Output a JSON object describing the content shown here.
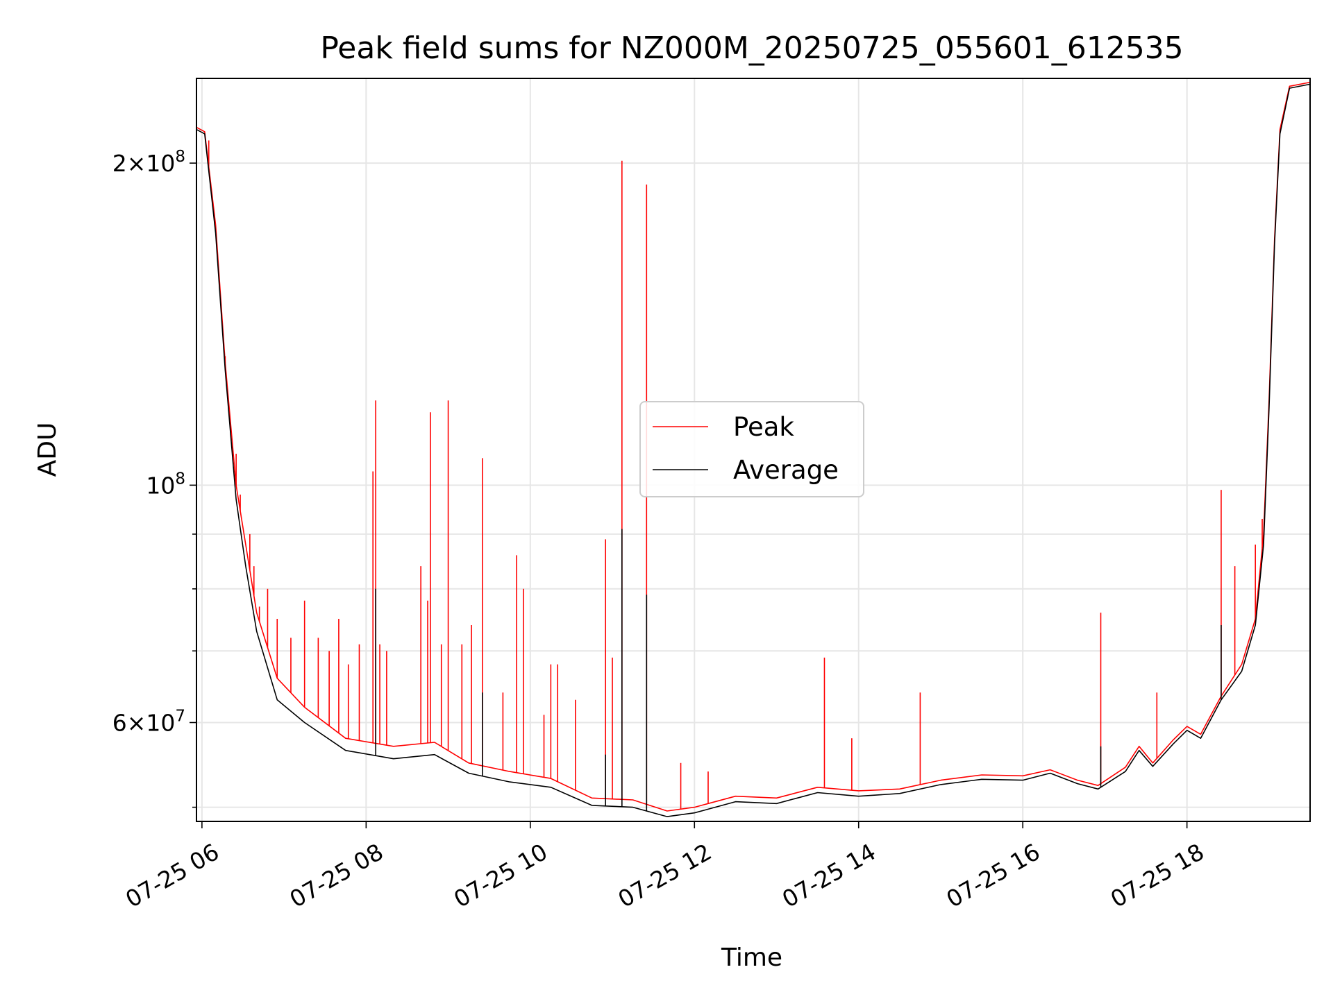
{
  "chart_data": {
    "type": "line",
    "title": "Peak field sums for NZ000M_20250725_055601_612535",
    "xlabel": "Time",
    "ylabel": "ADU",
    "x_range": [
      "2025-07-25 05:56",
      "2025-07-25 19:30"
    ],
    "y_range": [
      48500000,
      240000000
    ],
    "y_scale": "log",
    "grid": true,
    "legend_position": "center",
    "x_ticks": [
      {
        "value": "2025-07-25 06:00",
        "label": "07-25 06"
      },
      {
        "value": "2025-07-25 08:00",
        "label": "07-25 08"
      },
      {
        "value": "2025-07-25 10:00",
        "label": "07-25 10"
      },
      {
        "value": "2025-07-25 12:00",
        "label": "07-25 12"
      },
      {
        "value": "2025-07-25 14:00",
        "label": "07-25 14"
      },
      {
        "value": "2025-07-25 16:00",
        "label": "07-25 16"
      },
      {
        "value": "2025-07-25 18:00",
        "label": "07-25 18"
      }
    ],
    "y_ticks_major": [
      {
        "value": 60000000,
        "mantissa": "6",
        "exponent": "7"
      },
      {
        "value": 100000000,
        "mantissa": "",
        "exponent": "8"
      },
      {
        "value": 200000000,
        "mantissa": "2",
        "exponent": "8"
      }
    ],
    "y_ticks_minor": [
      50000000,
      70000000,
      80000000,
      90000000
    ],
    "series": [
      {
        "name": "Peak",
        "color": "#ff0000",
        "points": [
          [
            "2025-07-25 05:56",
            216000000
          ],
          [
            "2025-07-25 06:02",
            214000000
          ],
          [
            "2025-07-25 06:10",
            175000000
          ],
          [
            "2025-07-25 06:17",
            130000000
          ],
          [
            "2025-07-25 06:25",
            100000000
          ],
          [
            "2025-07-25 06:32",
            88000000
          ],
          [
            "2025-07-25 06:40",
            76000000
          ],
          [
            "2025-07-25 06:55",
            66000000
          ],
          [
            "2025-07-25 07:15",
            62000000
          ],
          [
            "2025-07-25 07:45",
            58000000
          ],
          [
            "2025-07-25 08:20",
            57000000
          ],
          [
            "2025-07-25 08:50",
            57500000
          ],
          [
            "2025-07-25 09:15",
            55000000
          ],
          [
            "2025-07-25 09:45",
            54000000
          ],
          [
            "2025-07-25 10:15",
            53200000
          ],
          [
            "2025-07-25 10:45",
            51000000
          ],
          [
            "2025-07-25 11:15",
            50800000
          ],
          [
            "2025-07-25 11:40",
            49600000
          ],
          [
            "2025-07-25 12:00",
            50000000
          ],
          [
            "2025-07-25 12:30",
            51200000
          ],
          [
            "2025-07-25 13:00",
            51000000
          ],
          [
            "2025-07-25 13:30",
            52200000
          ],
          [
            "2025-07-25 14:00",
            51800000
          ],
          [
            "2025-07-25 14:30",
            52000000
          ],
          [
            "2025-07-25 15:00",
            53000000
          ],
          [
            "2025-07-25 15:30",
            53600000
          ],
          [
            "2025-07-25 16:00",
            53500000
          ],
          [
            "2025-07-25 16:20",
            54200000
          ],
          [
            "2025-07-25 16:40",
            53000000
          ],
          [
            "2025-07-25 16:55",
            52400000
          ],
          [
            "2025-07-25 17:15",
            54500000
          ],
          [
            "2025-07-25 17:25",
            57000000
          ],
          [
            "2025-07-25 17:35",
            55000000
          ],
          [
            "2025-07-25 17:50",
            57800000
          ],
          [
            "2025-07-25 18:00",
            59500000
          ],
          [
            "2025-07-25 18:10",
            58500000
          ],
          [
            "2025-07-25 18:25",
            63500000
          ],
          [
            "2025-07-25 18:40",
            68000000
          ],
          [
            "2025-07-25 18:50",
            75000000
          ],
          [
            "2025-07-25 18:56",
            90000000
          ],
          [
            "2025-07-25 19:00",
            120000000
          ],
          [
            "2025-07-25 19:04",
            170000000
          ],
          [
            "2025-07-25 19:08",
            215000000
          ],
          [
            "2025-07-25 19:15",
            236000000
          ],
          [
            "2025-07-25 19:30",
            238000000
          ]
        ],
        "spikes": [
          [
            "2025-07-25 06:05",
            210000000
          ],
          [
            "2025-07-25 06:17",
            132000000
          ],
          [
            "2025-07-25 06:25",
            107000000
          ],
          [
            "2025-07-25 06:28",
            98000000
          ],
          [
            "2025-07-25 06:35",
            90000000
          ],
          [
            "2025-07-25 06:38",
            84000000
          ],
          [
            "2025-07-25 06:42",
            77000000
          ],
          [
            "2025-07-25 06:48",
            80000000
          ],
          [
            "2025-07-25 06:55",
            75000000
          ],
          [
            "2025-07-25 07:05",
            72000000
          ],
          [
            "2025-07-25 07:15",
            78000000
          ],
          [
            "2025-07-25 07:25",
            72000000
          ],
          [
            "2025-07-25 07:33",
            70000000
          ],
          [
            "2025-07-25 07:40",
            75000000
          ],
          [
            "2025-07-25 07:47",
            68000000
          ],
          [
            "2025-07-25 07:55",
            71000000
          ],
          [
            "2025-07-25 08:05",
            103000000
          ],
          [
            "2025-07-25 08:07",
            120000000
          ],
          [
            "2025-07-25 08:10",
            71000000
          ],
          [
            "2025-07-25 08:15",
            70000000
          ],
          [
            "2025-07-25 08:40",
            84000000
          ],
          [
            "2025-07-25 08:45",
            78000000
          ],
          [
            "2025-07-25 08:47",
            117000000
          ],
          [
            "2025-07-25 08:55",
            71000000
          ],
          [
            "2025-07-25 09:00",
            120000000
          ],
          [
            "2025-07-25 09:10",
            71000000
          ],
          [
            "2025-07-25 09:17",
            74000000
          ],
          [
            "2025-07-25 09:25",
            106000000
          ],
          [
            "2025-07-25 09:40",
            64000000
          ],
          [
            "2025-07-25 09:50",
            86000000
          ],
          [
            "2025-07-25 09:55",
            80000000
          ],
          [
            "2025-07-25 10:10",
            61000000
          ],
          [
            "2025-07-25 10:15",
            68000000
          ],
          [
            "2025-07-25 10:20",
            68000000
          ],
          [
            "2025-07-25 10:33",
            63000000
          ],
          [
            "2025-07-25 10:55",
            89000000
          ],
          [
            "2025-07-25 11:00",
            69000000
          ],
          [
            "2025-07-25 11:07",
            201000000
          ],
          [
            "2025-07-25 11:25",
            191000000
          ],
          [
            "2025-07-25 11:50",
            55000000
          ],
          [
            "2025-07-25 12:10",
            54000000
          ],
          [
            "2025-07-25 13:35",
            69000000
          ],
          [
            "2025-07-25 13:55",
            58000000
          ],
          [
            "2025-07-25 14:45",
            64000000
          ],
          [
            "2025-07-25 16:57",
            76000000
          ],
          [
            "2025-07-25 17:38",
            64000000
          ],
          [
            "2025-07-25 18:25",
            99000000
          ],
          [
            "2025-07-25 18:35",
            84000000
          ],
          [
            "2025-07-25 18:50",
            88000000
          ],
          [
            "2025-07-25 18:55",
            93000000
          ]
        ]
      },
      {
        "name": "Average",
        "color": "#000000",
        "points": [
          [
            "2025-07-25 05:56",
            215000000
          ],
          [
            "2025-07-25 06:02",
            213000000
          ],
          [
            "2025-07-25 06:10",
            172000000
          ],
          [
            "2025-07-25 06:17",
            128000000
          ],
          [
            "2025-07-25 06:25",
            97000000
          ],
          [
            "2025-07-25 06:32",
            84000000
          ],
          [
            "2025-07-25 06:40",
            73000000
          ],
          [
            "2025-07-25 06:55",
            63000000
          ],
          [
            "2025-07-25 07:15",
            60000000
          ],
          [
            "2025-07-25 07:45",
            56500000
          ],
          [
            "2025-07-25 08:20",
            55500000
          ],
          [
            "2025-07-25 08:50",
            56000000
          ],
          [
            "2025-07-25 09:15",
            53800000
          ],
          [
            "2025-07-25 09:45",
            52800000
          ],
          [
            "2025-07-25 10:15",
            52200000
          ],
          [
            "2025-07-25 10:45",
            50200000
          ],
          [
            "2025-07-25 11:15",
            50000000
          ],
          [
            "2025-07-25 11:40",
            49000000
          ],
          [
            "2025-07-25 12:00",
            49400000
          ],
          [
            "2025-07-25 12:30",
            50600000
          ],
          [
            "2025-07-25 13:00",
            50400000
          ],
          [
            "2025-07-25 13:30",
            51600000
          ],
          [
            "2025-07-25 14:00",
            51200000
          ],
          [
            "2025-07-25 14:30",
            51500000
          ],
          [
            "2025-07-25 15:00",
            52500000
          ],
          [
            "2025-07-25 15:30",
            53100000
          ],
          [
            "2025-07-25 16:00",
            53000000
          ],
          [
            "2025-07-25 16:20",
            53800000
          ],
          [
            "2025-07-25 16:40",
            52600000
          ],
          [
            "2025-07-25 16:55",
            52000000
          ],
          [
            "2025-07-25 17:15",
            54000000
          ],
          [
            "2025-07-25 17:25",
            56500000
          ],
          [
            "2025-07-25 17:35",
            54600000
          ],
          [
            "2025-07-25 17:50",
            57300000
          ],
          [
            "2025-07-25 18:00",
            59000000
          ],
          [
            "2025-07-25 18:10",
            58000000
          ],
          [
            "2025-07-25 18:25",
            63000000
          ],
          [
            "2025-07-25 18:40",
            67000000
          ],
          [
            "2025-07-25 18:50",
            74000000
          ],
          [
            "2025-07-25 18:56",
            88000000
          ],
          [
            "2025-07-25 19:00",
            118000000
          ],
          [
            "2025-07-25 19:04",
            168000000
          ],
          [
            "2025-07-25 19:08",
            213000000
          ],
          [
            "2025-07-25 19:15",
            235000000
          ],
          [
            "2025-07-25 19:30",
            237000000
          ]
        ],
        "spikes": [
          [
            "2025-07-25 08:07",
            80000000
          ],
          [
            "2025-07-25 09:25",
            64000000
          ],
          [
            "2025-07-25 10:55",
            56000000
          ],
          [
            "2025-07-25 11:07",
            91000000
          ],
          [
            "2025-07-25 11:25",
            79000000
          ],
          [
            "2025-07-25 16:57",
            57000000
          ],
          [
            "2025-07-25 18:25",
            74000000
          ]
        ]
      }
    ]
  }
}
